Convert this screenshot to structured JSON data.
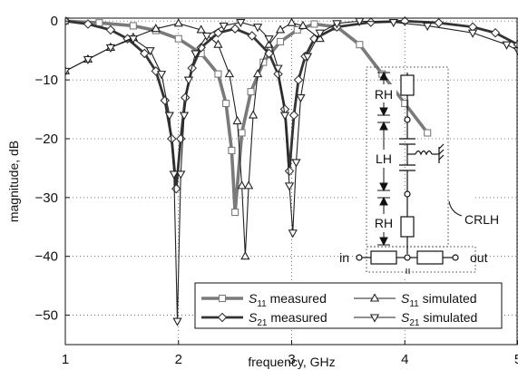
{
  "chart_data": {
    "type": "line",
    "xlabel": "frequency, GHz",
    "ylabel": "magnitude, dB",
    "xlim": [
      1,
      5
    ],
    "ylim": [
      -55,
      0.5
    ],
    "xticks": [
      1,
      2,
      3,
      4,
      5
    ],
    "yticks": [
      0,
      -10,
      -20,
      -30,
      -40,
      -50
    ],
    "grid": true,
    "legend_position": "bottom-right",
    "series": [
      {
        "key": "s11m",
        "name_base": "S",
        "name_sub": "11",
        "name_rest": " measured",
        "color": "#7a7a7a",
        "marker": "square",
        "line_style": "thick-gray",
        "x": [
          1.0,
          1.3,
          1.6,
          1.8,
          2.0,
          2.2,
          2.35,
          2.42,
          2.47,
          2.5,
          2.56,
          2.64,
          2.75,
          2.9,
          3.05,
          3.2,
          3.4,
          3.6,
          3.8,
          4.0,
          4.2
        ],
        "y": [
          0.0,
          -0.3,
          -0.8,
          -1.6,
          -3.0,
          -5.5,
          -9.0,
          -14.0,
          -22.0,
          -32.5,
          -19.0,
          -12.0,
          -7.0,
          -3.5,
          -1.5,
          -0.5,
          -1.0,
          -4.0,
          -9.0,
          -14.0,
          -19.0
        ]
      },
      {
        "key": "s21m",
        "name_base": "S",
        "name_sub": "21",
        "name_rest": " measured",
        "color": "#333333",
        "marker": "diamond",
        "line_style": "thick-dark",
        "x": [
          1.0,
          1.2,
          1.4,
          1.55,
          1.7,
          1.8,
          1.88,
          1.94,
          1.98,
          2.02,
          2.06,
          2.12,
          2.2,
          2.35,
          2.5,
          2.65,
          2.8,
          2.88,
          2.94,
          2.98,
          3.02,
          3.06,
          3.12,
          3.2,
          3.4,
          3.7,
          4.0,
          4.3,
          4.6,
          4.8,
          5.0
        ],
        "y": [
          0.0,
          -0.5,
          -1.5,
          -3.0,
          -5.5,
          -8.5,
          -13.5,
          -20.0,
          -28.5,
          -20.0,
          -13.0,
          -8.0,
          -4.5,
          -2.0,
          -1.3,
          -2.5,
          -5.5,
          -9.0,
          -15.0,
          -25.5,
          -16.0,
          -10.0,
          -6.0,
          -3.0,
          -1.0,
          -0.2,
          0.0,
          -0.3,
          -1.0,
          -2.0,
          -4.0
        ]
      },
      {
        "key": "s11s",
        "name_base": "S",
        "name_sub": "11",
        "name_rest": " simulated",
        "color": "#222222",
        "marker": "triangle-up",
        "line_style": "thin",
        "x": [
          1.0,
          1.2,
          1.4,
          1.6,
          1.8,
          2.0,
          2.2,
          2.35,
          2.45,
          2.52,
          2.56,
          2.59,
          2.62,
          2.66,
          2.7,
          2.8,
          2.9,
          3.0,
          3.1,
          3.25
        ],
        "y": [
          -8.5,
          -6.5,
          -4.5,
          -2.8,
          -1.3,
          -0.4,
          -1.5,
          -4.0,
          -9.0,
          -17.0,
          -28.0,
          -40.0,
          -28.0,
          -16.0,
          -9.0,
          -4.0,
          -1.5,
          -0.3,
          -0.8,
          -3.0
        ]
      },
      {
        "key": "s21s",
        "name_base": "S",
        "name_sub": "21",
        "name_rest": " simulated",
        "color": "#222222",
        "marker": "triangle-down",
        "line_style": "thin",
        "x": [
          1.0,
          1.2,
          1.4,
          1.6,
          1.75,
          1.85,
          1.92,
          1.96,
          1.99,
          2.02,
          2.05,
          2.09,
          2.15,
          2.25,
          2.4,
          2.55,
          2.7,
          2.8,
          2.88,
          2.94,
          2.98,
          3.01,
          3.04,
          3.08,
          3.14,
          3.25,
          3.4,
          3.6,
          3.9,
          4.2,
          4.6,
          4.9,
          5.0
        ],
        "y": [
          -8.5,
          -6.5,
          -4.5,
          -3.0,
          -5.0,
          -9.0,
          -16.0,
          -26.0,
          -51.0,
          -26.0,
          -16.0,
          -10.0,
          -5.5,
          -2.5,
          -0.8,
          -0.2,
          -1.0,
          -3.0,
          -8.0,
          -16.0,
          -28.0,
          -36.0,
          -24.0,
          -13.0,
          -6.0,
          -2.0,
          -0.4,
          0.0,
          -0.2,
          -0.8,
          -2.0,
          -4.0,
          -5.0
        ]
      }
    ]
  },
  "inset": {
    "labels": {
      "rh_top": "RH",
      "lh": "LH",
      "rh_bottom": "RH",
      "crlh": "CRLH",
      "in": "in",
      "out": "out"
    }
  }
}
